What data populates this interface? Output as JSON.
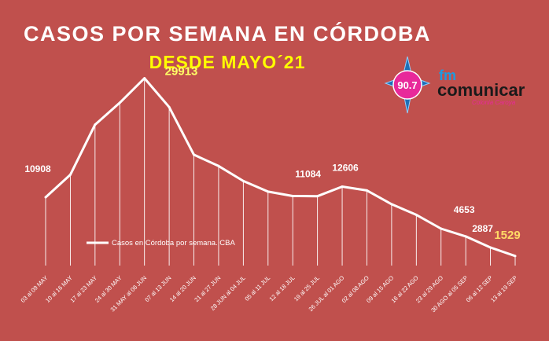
{
  "chart_data": {
    "type": "line",
    "title": "CASOS POR SEMANA EN CÓRDOBA",
    "subtitle": "DESDE MAYO´21",
    "categories": [
      "03 al 09 MAY",
      "10 al 16 MAY",
      "17 al 23 MAY",
      "24 al 30 MAY",
      "31 MAY al 06 JUN",
      "07 al 13 JUN",
      "14 al 20 JUN",
      "21 al 27 JUN",
      "28 JUN al 04 JUL",
      "05 al 11 JUL",
      "12 al 18 JUL",
      "19 al 25 JUL",
      "26 JUL al 01 AGO",
      "02 al 08 AGO",
      "09 al 15 AGO",
      "16 al 22 AGO",
      "23 al 29 AGO",
      "30 AGO al 05 SEP",
      "06 al 12 SEP",
      "13 al 19 SEP"
    ],
    "series": [
      {
        "name": "Casos en Córdoba por semana. CBA",
        "values": [
          10908,
          14500,
          22500,
          26000,
          29913,
          25300,
          17700,
          15900,
          13500,
          11800,
          11100,
          11084,
          12606,
          12000,
          9800,
          8100,
          5900,
          4653,
          2887,
          1529
        ]
      }
    ],
    "data_labels": [
      {
        "index": 0,
        "text": "10908"
      },
      {
        "index": 4,
        "text": "29913"
      },
      {
        "index": 11,
        "text": "11084"
      },
      {
        "index": 12,
        "text": "12606"
      },
      {
        "index": 17,
        "text": "4653"
      },
      {
        "index": 18,
        "text": "2887"
      },
      {
        "index": 19,
        "text": "1529"
      }
    ],
    "ylim": [
      0,
      34000
    ],
    "grid": false,
    "legend_position": "left-middle",
    "xlabel": "",
    "ylabel": ""
  },
  "logo": {
    "frequency": "90.7",
    "brand_prefix": "fm",
    "brand_name": "comunicar",
    "brand_tagline": "Colonia Caroya"
  },
  "colors": {
    "background": "#c0504d",
    "line": "#ffffff",
    "title": "#ffffff",
    "subtitle": "#ffff00",
    "highlight_label": "#ffff66",
    "last_label": "#ffd966",
    "logo_pink": "#e8299a",
    "logo_blue": "#1d6fb8"
  }
}
